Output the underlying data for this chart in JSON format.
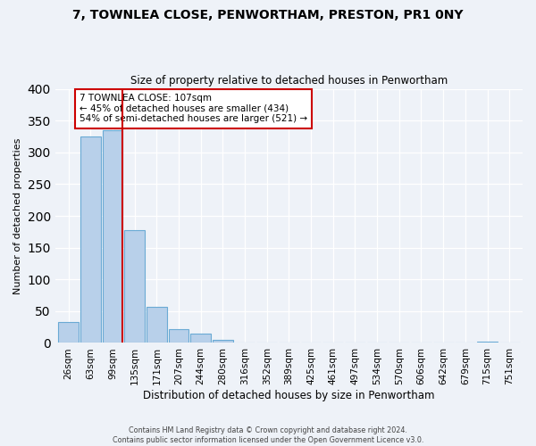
{
  "title_line1": "7, TOWNLEA CLOSE, PENWORTHAM, PRESTON, PR1 0NY",
  "title_line2": "Size of property relative to detached houses in Penwortham",
  "xlabel": "Distribution of detached houses by size in Penwortham",
  "ylabel": "Number of detached properties",
  "bin_labels": [
    "26sqm",
    "63sqm",
    "99sqm",
    "135sqm",
    "171sqm",
    "207sqm",
    "244sqm",
    "280sqm",
    "316sqm",
    "352sqm",
    "389sqm",
    "425sqm",
    "461sqm",
    "497sqm",
    "534sqm",
    "570sqm",
    "606sqm",
    "642sqm",
    "679sqm",
    "715sqm",
    "751sqm"
  ],
  "bar_heights": [
    33,
    325,
    335,
    178,
    57,
    22,
    15,
    5,
    1,
    0,
    1,
    0,
    0,
    0,
    0,
    0,
    0,
    0,
    0,
    2,
    0
  ],
  "bar_color": "#b8d0ea",
  "bar_edge_color": "#6aaad4",
  "vline_color": "#cc0000",
  "annotation_text": "7 TOWNLEA CLOSE: 107sqm\n← 45% of detached houses are smaller (434)\n54% of semi-detached houses are larger (521) →",
  "annotation_box_color": "#ffffff",
  "annotation_box_edge_color": "#cc0000",
  "ylim": [
    0,
    400
  ],
  "yticks": [
    0,
    50,
    100,
    150,
    200,
    250,
    300,
    350,
    400
  ],
  "bg_color": "#eef2f8",
  "footer_line1": "Contains HM Land Registry data © Crown copyright and database right 2024.",
  "footer_line2": "Contains public sector information licensed under the Open Government Licence v3.0."
}
